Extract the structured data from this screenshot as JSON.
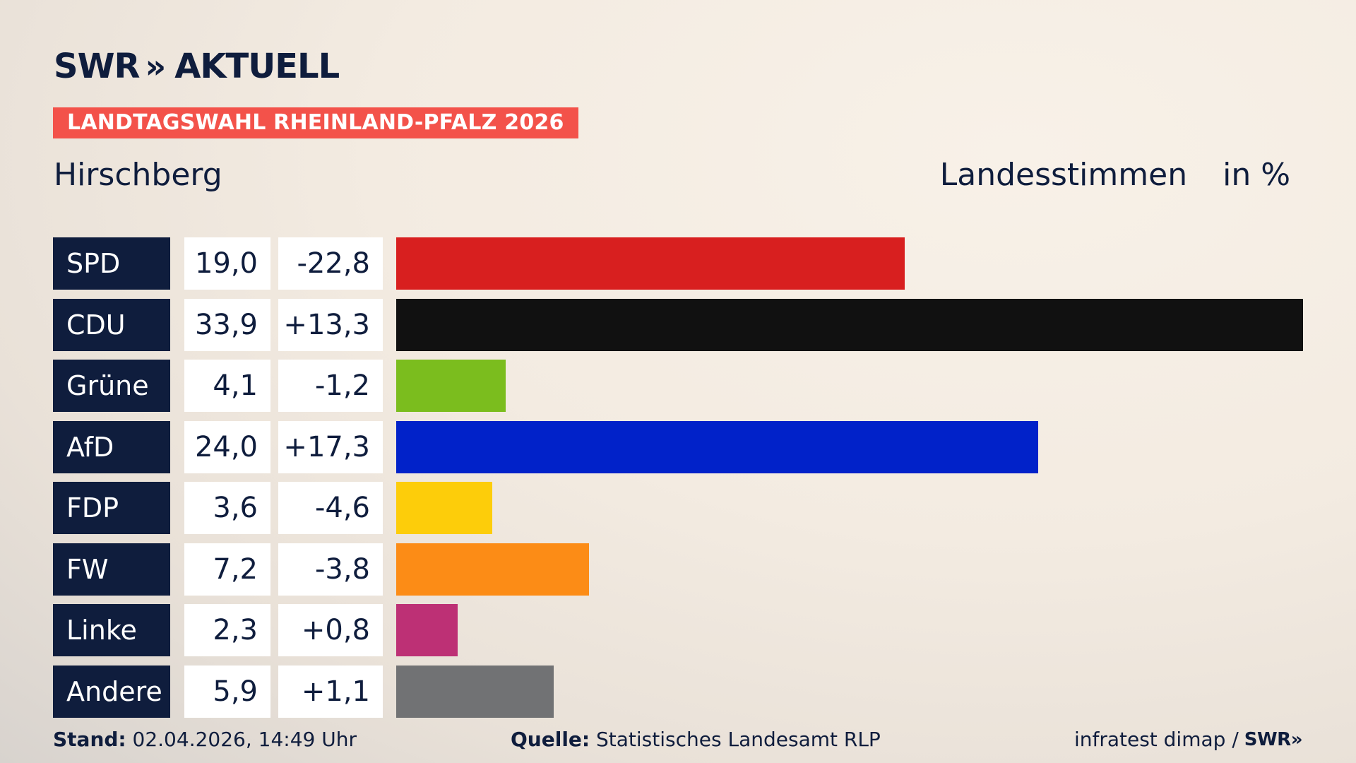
{
  "brand": {
    "name": "SWR",
    "chevrons": "»",
    "section": "AKTUELL"
  },
  "tag": "LANDTAGSWAHL RHEINLAND-PFALZ 2026",
  "place": "Hirschberg",
  "vote_type": "Landesstimmen",
  "unit": "in %",
  "chart_data": {
    "type": "bar",
    "orientation": "horizontal",
    "categories": [
      "SPD",
      "CDU",
      "Grüne",
      "AfD",
      "FDP",
      "FW",
      "Linke",
      "Andere"
    ],
    "values": [
      19.0,
      33.9,
      4.1,
      24.0,
      3.6,
      7.2,
      2.3,
      5.9
    ],
    "value_labels": [
      "19,0",
      "33,9",
      "4,1",
      "24,0",
      "3,6",
      "7,2",
      "2,3",
      "5,9"
    ],
    "diffs": [
      -22.8,
      13.3,
      -1.2,
      17.3,
      -4.6,
      -3.8,
      0.8,
      1.1
    ],
    "diff_labels": [
      "-22,8",
      "+13,3",
      "-1,2",
      "+17,3",
      "-4,6",
      "-3,8",
      "+0,8",
      "+1,1"
    ],
    "colors": [
      "#d81f1f",
      "#111111",
      "#7bbd1e",
      "#0122c9",
      "#fdcd0a",
      "#fc8c16",
      "#bd3075",
      "#717274"
    ],
    "xlim": [
      0,
      33.9
    ]
  },
  "footer": {
    "stand_label": "Stand:",
    "stand_value": "02.04.2026, 14:49 Uhr",
    "quelle_label": "Quelle:",
    "quelle_value": "Statistisches Landesamt RLP",
    "credit": "infratest dimap /",
    "credit_brand": "SWR",
    "credit_chevrons": "»"
  }
}
